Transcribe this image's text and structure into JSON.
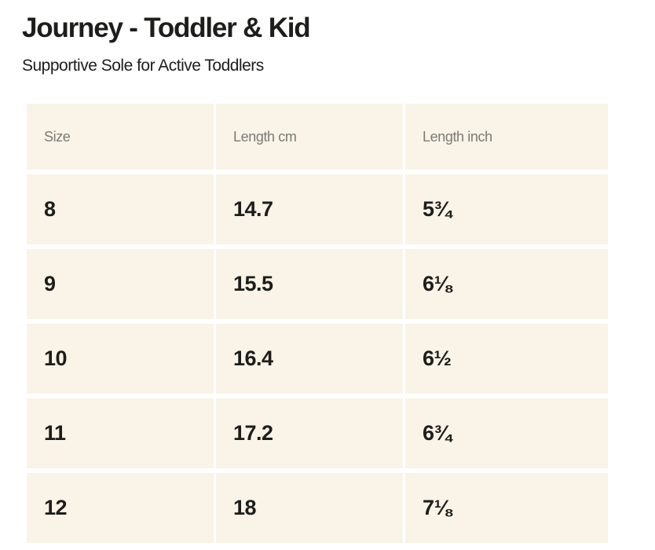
{
  "title": "Journey - Toddler & Kid",
  "subtitle": "Supportive Sole for Active Toddlers",
  "table": {
    "headers": [
      "Size",
      "Length cm",
      "Length inch"
    ],
    "rows": [
      [
        "8",
        "14.7",
        "5¾"
      ],
      [
        "9",
        "15.5",
        "6⅛"
      ],
      [
        "10",
        "16.4",
        "6½"
      ],
      [
        "11",
        "17.2",
        "6¾"
      ],
      [
        "12",
        "18",
        "7⅛"
      ]
    ]
  },
  "colors": {
    "cell_background": "#f9f4e7",
    "header_text": "#7a7a75",
    "body_text": "#1d1d1b"
  }
}
